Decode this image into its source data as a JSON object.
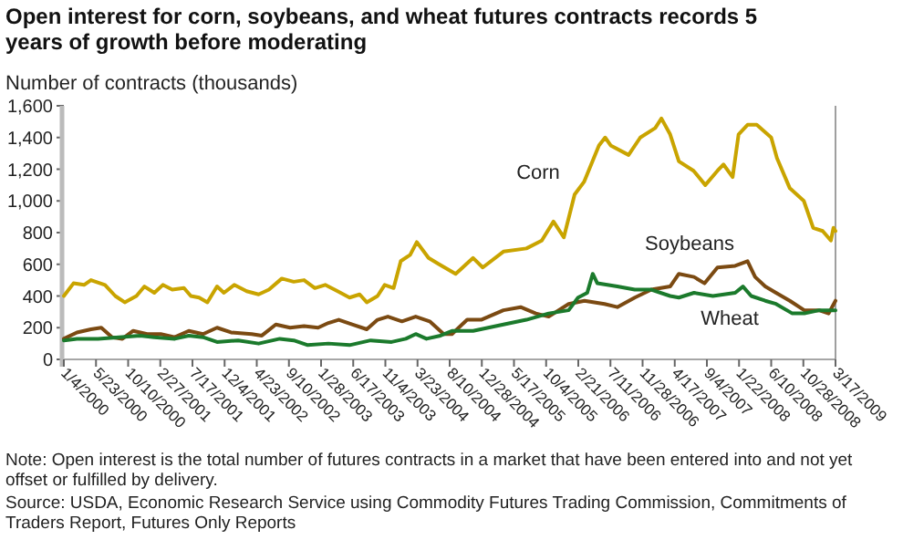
{
  "chart_data": {
    "type": "line",
    "title": "Open interest for corn, soybeans, and wheat futures contracts records 5 years of growth before moderating",
    "ylabel": "Number of contracts (thousands)",
    "xlim": [
      "2000-01-04",
      "2009-03-17"
    ],
    "xticks": [
      {
        "value": "2000-01-04",
        "label": "1/4/2000"
      },
      {
        "value": "2000-05-23",
        "label": "5/23/2000"
      },
      {
        "value": "2000-10-10",
        "label": "10/10/2000"
      },
      {
        "value": "2001-02-27",
        "label": "2/27/2001"
      },
      {
        "value": "2001-07-17",
        "label": "7/17/2001"
      },
      {
        "value": "2001-12-04",
        "label": "12/4/2001"
      },
      {
        "value": "2002-04-23",
        "label": "4/23/2002"
      },
      {
        "value": "2002-09-10",
        "label": "9/10/2002"
      },
      {
        "value": "2003-01-28",
        "label": "1/28/2003"
      },
      {
        "value": "2003-06-17",
        "label": "6/17/2003"
      },
      {
        "value": "2003-11-04",
        "label": "11/4/2003"
      },
      {
        "value": "2004-03-23",
        "label": "3/23/2004"
      },
      {
        "value": "2004-08-10",
        "label": "8/10/2004"
      },
      {
        "value": "2004-12-28",
        "label": "12/28/2004"
      },
      {
        "value": "2005-05-17",
        "label": "5/17/2005"
      },
      {
        "value": "2005-10-04",
        "label": "10/4/2005"
      },
      {
        "value": "2006-02-21",
        "label": "2/21/2006"
      },
      {
        "value": "2006-07-11",
        "label": "7/11/2006"
      },
      {
        "value": "2006-11-28",
        "label": "11/28/2006"
      },
      {
        "value": "2007-04-17",
        "label": "4/17/2007"
      },
      {
        "value": "2007-09-04",
        "label": "9/4/2007"
      },
      {
        "value": "2008-01-22",
        "label": "1/22/2008"
      },
      {
        "value": "2008-06-10",
        "label": "6/10/2008"
      },
      {
        "value": "2008-10-28",
        "label": "10/28/2008"
      },
      {
        "value": "2009-03-17",
        "label": "3/17/2009"
      }
    ],
    "ylim": [
      0,
      1600
    ],
    "yticks": [
      0,
      200,
      400,
      600,
      800,
      {
        "value": 1000,
        "label": "1,000"
      },
      {
        "value": 1200,
        "label": "1,200"
      },
      {
        "value": 1400,
        "label": "1,400"
      },
      {
        "value": 1600,
        "label": "1,600"
      }
    ],
    "grid": false,
    "legend": false,
    "series": [
      {
        "name": "Corn",
        "color": "#c9a400",
        "x": [
          "2000-01-04",
          "2000-02-15",
          "2000-04-01",
          "2000-05-01",
          "2000-07-01",
          "2000-08-15",
          "2000-09-25",
          "2000-11-15",
          "2000-12-20",
          "2001-02-01",
          "2001-03-10",
          "2001-04-20",
          "2001-06-10",
          "2001-07-10",
          "2001-08-15",
          "2001-09-20",
          "2001-11-01",
          "2001-12-01",
          "2002-01-15",
          "2002-03-10",
          "2002-05-01",
          "2002-06-15",
          "2002-08-10",
          "2002-10-01",
          "2002-11-15",
          "2003-01-01",
          "2003-02-15",
          "2003-04-10",
          "2003-06-01",
          "2003-07-15",
          "2003-08-15",
          "2003-10-01",
          "2003-11-01",
          "2003-12-10",
          "2004-01-10",
          "2004-02-20",
          "2004-03-20",
          "2004-05-10",
          "2004-06-25",
          "2004-09-05",
          "2004-11-20",
          "2005-01-01",
          "2005-04-01",
          "2005-07-10",
          "2005-09-15",
          "2005-11-05",
          "2005-12-20",
          "2006-02-05",
          "2006-03-18",
          "2006-05-22",
          "2006-06-18",
          "2006-07-12",
          "2006-09-28",
          "2006-11-18",
          "2007-01-22",
          "2007-02-18",
          "2007-03-28",
          "2007-05-05",
          "2007-07-08",
          "2007-08-28",
          "2007-10-20",
          "2007-11-15",
          "2007-12-25",
          "2008-01-20",
          "2008-02-28",
          "2008-04-08",
          "2008-06-10",
          "2008-07-05",
          "2008-08-30",
          "2008-10-30",
          "2008-12-10",
          "2009-01-20",
          "2009-02-25",
          "2009-03-08",
          "2009-03-17"
        ],
        "values": [
          400,
          480,
          470,
          500,
          470,
          400,
          360,
          400,
          460,
          420,
          470,
          440,
          450,
          400,
          390,
          360,
          460,
          420,
          470,
          430,
          410,
          440,
          510,
          490,
          500,
          450,
          470,
          430,
          390,
          410,
          360,
          400,
          470,
          450,
          620,
          660,
          740,
          640,
          600,
          540,
          640,
          580,
          680,
          700,
          750,
          870,
          770,
          1040,
          1120,
          1350,
          1400,
          1350,
          1290,
          1400,
          1460,
          1520,
          1420,
          1250,
          1190,
          1100,
          1190,
          1230,
          1150,
          1420,
          1480,
          1480,
          1400,
          1270,
          1080,
          1000,
          830,
          810,
          750,
          830,
          810
        ]
      },
      {
        "name": "Soybeans",
        "color": "#7b4a12",
        "x": [
          "2000-01-04",
          "2000-03-01",
          "2000-05-01",
          "2000-06-15",
          "2000-08-01",
          "2000-09-15",
          "2000-11-01",
          "2001-01-01",
          "2001-03-01",
          "2001-05-01",
          "2001-07-01",
          "2001-09-01",
          "2001-11-01",
          "2002-01-01",
          "2002-04-01",
          "2002-05-15",
          "2002-07-15",
          "2002-09-15",
          "2002-11-15",
          "2003-01-15",
          "2003-03-01",
          "2003-04-15",
          "2003-06-15",
          "2003-08-15",
          "2003-10-01",
          "2003-11-15",
          "2004-01-15",
          "2004-03-15",
          "2004-05-15",
          "2004-07-15",
          "2004-08-20",
          "2004-10-25",
          "2004-12-25",
          "2005-04-01",
          "2005-06-15",
          "2005-08-20",
          "2005-10-15",
          "2006-01-10",
          "2006-03-20",
          "2006-06-15",
          "2006-08-10",
          "2006-10-25",
          "2007-01-05",
          "2007-03-28",
          "2007-05-05",
          "2007-07-10",
          "2007-08-25",
          "2007-10-20",
          "2008-01-05",
          "2008-02-28",
          "2008-04-01",
          "2008-05-15",
          "2008-07-01",
          "2008-08-30",
          "2008-11-01",
          "2009-01-05",
          "2009-02-15",
          "2009-03-17"
        ],
        "values": [
          130,
          170,
          190,
          200,
          140,
          130,
          180,
          160,
          160,
          140,
          180,
          160,
          200,
          170,
          160,
          150,
          220,
          200,
          210,
          200,
          230,
          250,
          220,
          190,
          250,
          270,
          240,
          270,
          240,
          160,
          160,
          250,
          250,
          310,
          330,
          290,
          270,
          350,
          370,
          350,
          330,
          390,
          440,
          460,
          540,
          520,
          480,
          580,
          590,
          620,
          520,
          460,
          420,
          370,
          310,
          310,
          290,
          370
        ]
      },
      {
        "name": "Wheat",
        "color": "#1b7a2c",
        "x": [
          "2000-01-04",
          "2000-03-01",
          "2000-06-01",
          "2000-09-01",
          "2000-12-01",
          "2001-02-01",
          "2001-05-01",
          "2001-07-01",
          "2001-09-01",
          "2001-11-01",
          "2002-02-01",
          "2002-05-01",
          "2002-08-01",
          "2002-10-01",
          "2002-12-01",
          "2003-03-01",
          "2003-06-01",
          "2003-09-01",
          "2003-12-01",
          "2004-02-01",
          "2004-03-15",
          "2004-05-01",
          "2004-07-01",
          "2004-08-20",
          "2004-11-20",
          "2005-04-01",
          "2005-07-10",
          "2005-10-15",
          "2006-01-10",
          "2006-02-20",
          "2006-04-01",
          "2006-04-25",
          "2006-05-15",
          "2006-08-10",
          "2006-10-25",
          "2007-01-05",
          "2007-03-28",
          "2007-05-05",
          "2007-07-10",
          "2007-09-30",
          "2008-01-05",
          "2008-02-08",
          "2008-03-15",
          "2008-05-15",
          "2008-07-01",
          "2008-09-10",
          "2008-11-01",
          "2009-01-05",
          "2009-03-17"
        ],
        "values": [
          120,
          130,
          130,
          140,
          150,
          140,
          130,
          150,
          140,
          110,
          120,
          100,
          130,
          120,
          90,
          100,
          90,
          120,
          110,
          130,
          160,
          130,
          150,
          180,
          180,
          220,
          250,
          290,
          310,
          390,
          420,
          540,
          480,
          460,
          440,
          440,
          400,
          390,
          420,
          400,
          420,
          460,
          400,
          370,
          350,
          290,
          290,
          310,
          310
        ]
      }
    ],
    "annotations": [
      "Note: Open interest is the total number of futures contracts in a market that have been entered into and not yet offset or fulfilled by delivery.",
      "Source: USDA, Economic Research Service using Commodity Futures Trading Commission, Commitments of Traders Report, Futures Only Reports"
    ]
  }
}
